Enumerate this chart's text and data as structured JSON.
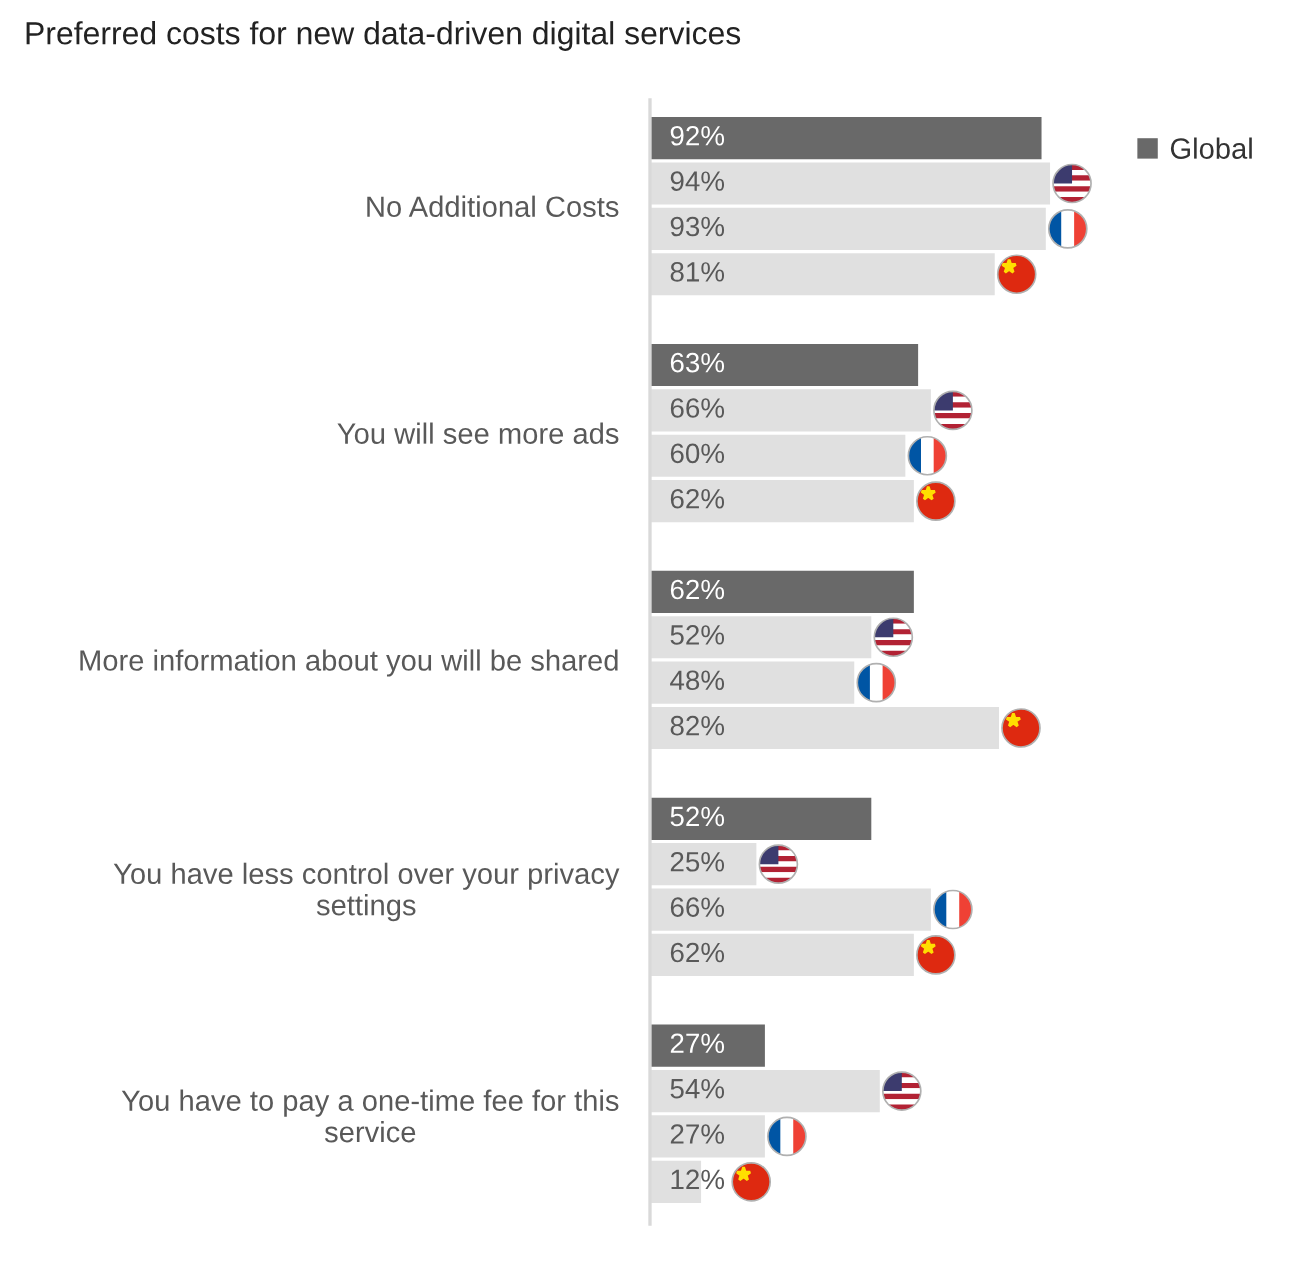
{
  "chart_data": {
    "type": "bar",
    "orientation": "horizontal",
    "title": "Preferred costs for new data-driven digital services",
    "categories": [
      "No Additional Costs",
      "You will see more ads",
      "More information about you will be shared",
      "You have less control over your privacy\nsettings",
      "You have to pay a one-time fee for this\nservice"
    ],
    "series": [
      {
        "name": "Global",
        "color": "#696969",
        "values": [
          92,
          63,
          62,
          52,
          27
        ],
        "value_labels": [
          "92%",
          "63%",
          "62%",
          "52%",
          "27%"
        ]
      },
      {
        "color": "#e0e0e0",
        "values": [
          94,
          66,
          52,
          25,
          54
        ],
        "value_labels": [
          "94%",
          "66%",
          "52%",
          "25%",
          "54%"
        ]
      },
      {
        "color": "#e0e0e0",
        "values": [
          93,
          60,
          48,
          66,
          27
        ],
        "value_labels": [
          "93%",
          "60%",
          "48%",
          "66%",
          "27%"
        ]
      },
      {
        "color": "#e0e0e0",
        "values": [
          81,
          62,
          82,
          62,
          12
        ],
        "value_labels": [
          "81%",
          "62%",
          "82%",
          "62%",
          "12%"
        ]
      }
    ],
    "legend": "top right"
  }
}
